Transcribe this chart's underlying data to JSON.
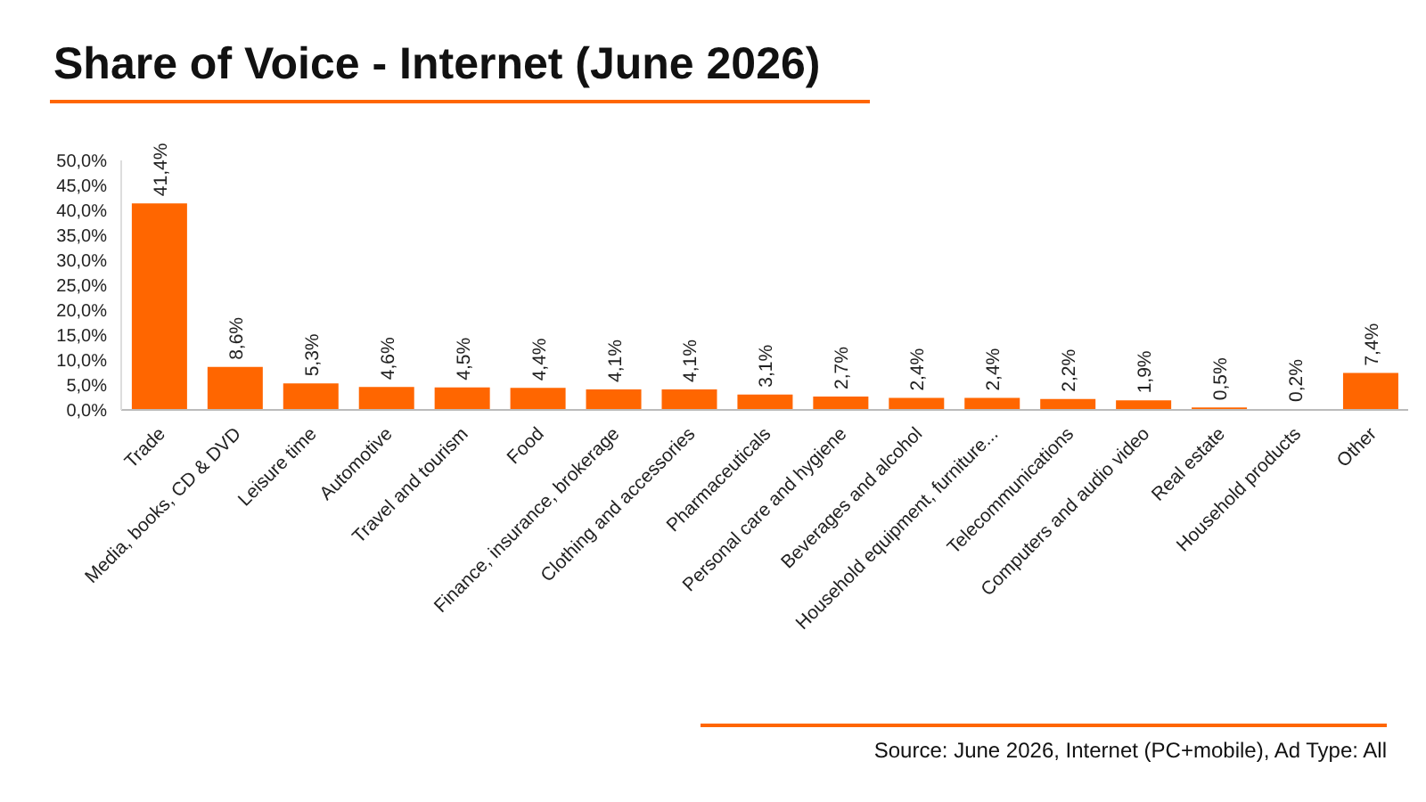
{
  "chart_data": {
    "type": "bar",
    "title": "Share of Voice - Internet (June 2026)",
    "categories": [
      "Trade",
      "Media, books, CD & DVD",
      "Leisure time",
      "Automotive",
      "Travel and tourism",
      "Food",
      "Finance, insurance, brokerage",
      "Clothing and accessories",
      "Pharmaceuticals",
      "Personal care and hygiene",
      "Beverages and alcohol",
      "Household equipment, furniture...",
      "Telecommunications",
      "Computers and audio video",
      "Real estate",
      "Household products",
      "Other"
    ],
    "values": [
      41.4,
      8.6,
      5.3,
      4.6,
      4.5,
      4.4,
      4.1,
      4.1,
      3.1,
      2.7,
      2.4,
      2.4,
      2.2,
      1.9,
      0.5,
      0.2,
      7.4
    ],
    "value_labels": [
      "41,4%",
      "8,6%",
      "5,3%",
      "4,6%",
      "4,5%",
      "4,4%",
      "4,1%",
      "4,1%",
      "3,1%",
      "2,7%",
      "2,4%",
      "2,4%",
      "2,2%",
      "1,9%",
      "0,5%",
      "0,2%",
      "7,4%"
    ],
    "color": "#ff6600",
    "ylim": [
      0,
      50
    ],
    "yticks": [
      {
        "value": 0,
        "label": "0,0%"
      },
      {
        "value": 5,
        "label": "5,0%"
      },
      {
        "value": 10,
        "label": "10,0%"
      },
      {
        "value": 15,
        "label": "15,0%"
      },
      {
        "value": 20,
        "label": "20,0%"
      },
      {
        "value": 25,
        "label": "25,0%"
      },
      {
        "value": 30,
        "label": "30,0%"
      },
      {
        "value": 35,
        "label": "35,0%"
      },
      {
        "value": 40,
        "label": "40,0%"
      },
      {
        "value": 45,
        "label": "45,0%"
      },
      {
        "value": 50,
        "label": "50,0%"
      }
    ],
    "grid": false,
    "annotations": [
      "Source: June 2026, Internet (PC+mobile), Ad Type: All"
    ]
  }
}
